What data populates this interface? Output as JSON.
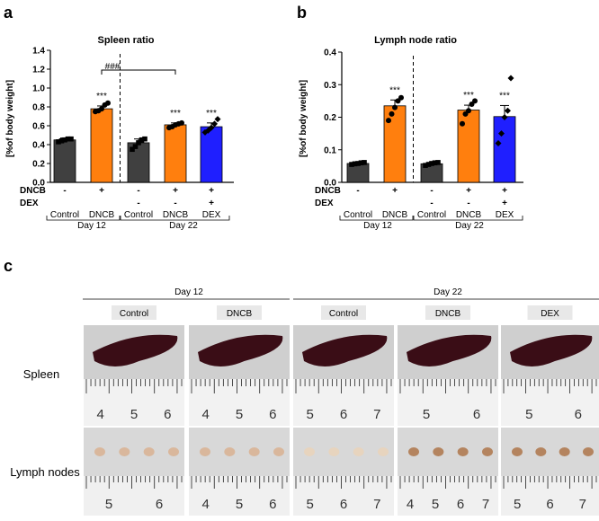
{
  "panels": {
    "a": "a",
    "b": "b",
    "c": "c"
  },
  "chart_data": [
    {
      "type": "bar",
      "title": "Spleen ratio",
      "ylabel": "[%of body weight]",
      "ylim": [
        0,
        1.4
      ],
      "yticks": [
        "0.0",
        "0.2",
        "0.4",
        "0.6",
        "0.8",
        "1.0",
        "1.2",
        "1.4"
      ],
      "categories": [
        "Control",
        "DNCB",
        "Control",
        "DNCB",
        "DEX"
      ],
      "values": [
        0.45,
        0.78,
        0.42,
        0.61,
        0.59
      ],
      "errors": [
        0.02,
        0.03,
        0.04,
        0.02,
        0.04
      ],
      "points": [
        [
          0.43,
          0.44,
          0.45,
          0.46,
          0.46
        ],
        [
          0.75,
          0.76,
          0.78,
          0.82,
          0.84
        ],
        [
          0.35,
          0.38,
          0.42,
          0.45,
          0.46
        ],
        [
          0.58,
          0.59,
          0.61,
          0.62,
          0.63
        ],
        [
          0.53,
          0.55,
          0.58,
          0.62,
          0.67
        ]
      ],
      "colors": [
        "#404040",
        "#ff7f0e",
        "#404040",
        "#ff7f0e",
        "#1f1fff"
      ],
      "signif": [
        "",
        "***",
        "",
        "***",
        "***"
      ],
      "bracket_label": "###",
      "treatment_rows": [
        {
          "name": "DNCB",
          "marks": [
            "-",
            "+",
            "-",
            "+",
            "+"
          ]
        },
        {
          "name": "DEX",
          "marks": [
            "",
            "",
            "-",
            "-",
            "+"
          ]
        }
      ],
      "groups": [
        {
          "label": "Day 12"
        },
        {
          "label": "Day 22"
        }
      ]
    },
    {
      "type": "bar",
      "title": "Lymph node ratio",
      "ylabel": "[%of body weight]",
      "ylim": [
        0,
        0.4
      ],
      "yticks": [
        "0.0",
        "0.1",
        "0.2",
        "0.3",
        "0.4"
      ],
      "categories": [
        "Control",
        "DNCB",
        "Control",
        "DNCB",
        "DEX"
      ],
      "values": [
        0.058,
        0.235,
        0.057,
        0.222,
        0.202
      ],
      "errors": [
        0.004,
        0.018,
        0.004,
        0.015,
        0.034
      ],
      "points": [
        [
          0.055,
          0.057,
          0.058,
          0.06,
          0.061
        ],
        [
          0.19,
          0.21,
          0.23,
          0.25,
          0.26
        ],
        [
          0.052,
          0.055,
          0.058,
          0.06,
          0.061
        ],
        [
          0.18,
          0.21,
          0.22,
          0.24,
          0.25
        ],
        [
          0.12,
          0.15,
          0.2,
          0.22,
          0.32
        ]
      ],
      "colors": [
        "#404040",
        "#ff7f0e",
        "#404040",
        "#ff7f0e",
        "#1f1fff"
      ],
      "signif": [
        "",
        "***",
        "",
        "***",
        "***"
      ],
      "treatment_rows": [
        {
          "name": "DNCB",
          "marks": [
            "-",
            "+",
            "-",
            "+",
            "+"
          ]
        },
        {
          "name": "DEX",
          "marks": [
            "",
            "",
            "-",
            "-",
            "+"
          ]
        }
      ],
      "groups": [
        {
          "label": "Day 12"
        },
        {
          "label": "Day 22"
        }
      ]
    }
  ],
  "photo_panel": {
    "day_headers": [
      "Day 12",
      "Day 22"
    ],
    "columns": [
      "Control",
      "DNCB",
      "Control",
      "DNCB",
      "DEX"
    ],
    "row_labels": [
      "Spleen",
      "Lymph nodes"
    ],
    "spleen_ruler_numbers": [
      [
        "4",
        "5",
        "6"
      ],
      [
        "4",
        "5",
        "6"
      ],
      [
        "5",
        "6",
        "7"
      ],
      [
        "5",
        "6"
      ],
      [
        "5",
        "6"
      ]
    ],
    "lymph_ruler_numbers": [
      [
        "5",
        "6"
      ],
      [
        "4",
        "5",
        "6"
      ],
      [
        "5",
        "6",
        "7"
      ],
      [
        "4",
        "5",
        "6",
        "7"
      ],
      [
        "5",
        "6",
        "7"
      ]
    ]
  }
}
